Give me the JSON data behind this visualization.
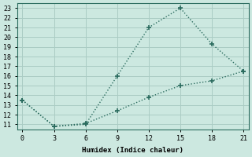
{
  "line1_x": [
    0,
    3,
    6,
    9,
    12,
    15,
    18,
    21
  ],
  "line1_y": [
    13.5,
    10.8,
    11.0,
    16.0,
    21.0,
    23.0,
    19.3,
    16.5
  ],
  "line2_x": [
    0,
    3,
    6,
    9,
    12,
    15,
    18,
    21
  ],
  "line2_y": [
    13.5,
    10.8,
    11.1,
    12.4,
    13.8,
    15.0,
    15.5,
    16.5
  ],
  "line_color": "#2a6b5e",
  "bg_color": "#cce8e0",
  "grid_color": "#aaccc4",
  "xlabel": "Humidex (Indice chaleur)",
  "xlim": [
    -0.5,
    21.5
  ],
  "ylim": [
    10.5,
    23.5
  ],
  "xticks": [
    0,
    3,
    6,
    9,
    12,
    15,
    18,
    21
  ],
  "yticks": [
    11,
    12,
    13,
    14,
    15,
    16,
    17,
    18,
    19,
    20,
    21,
    22,
    23
  ],
  "marker": "+",
  "linewidth": 1.0,
  "markersize": 5,
  "markeredgewidth": 1.2
}
